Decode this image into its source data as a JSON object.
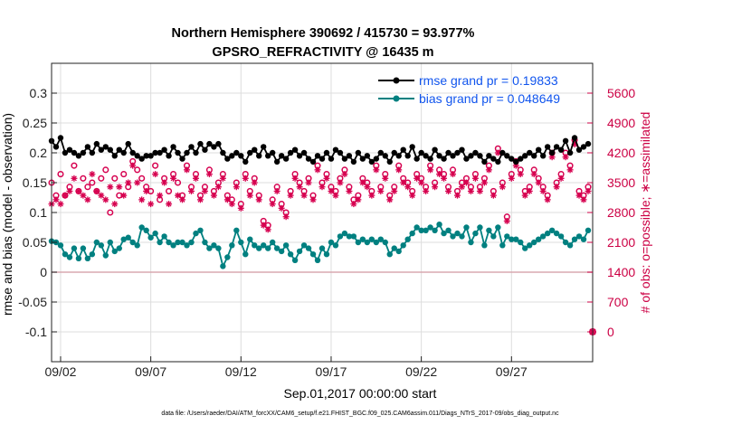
{
  "chart_data": {
    "type": "line",
    "title_line1": "Northern Hemisphere 390692 / 415730 = 93.977%",
    "title_line2": "GPSRO_REFRACTIVITY @ 16435 m",
    "xlabel": "Sep.01,2017 00:00:00 start",
    "ylabel": "rmse and bias (model - observation)",
    "y2label": "# of obs: o=possible; ∗=assimilated",
    "footer": "data file: /Users/raeder/DAI/ATM_forcXX/CAM6_setup/f.e21.FHIST_BGC.f09_025.CAM6assim.011/Diags_NTrS_2017-09/obs_diag_output.nc",
    "xlim": [
      1.5,
      31.5
    ],
    "ylim": [
      -0.15,
      0.35
    ],
    "y2lim": [
      -700,
      6300
    ],
    "x_ticks": [
      2,
      7,
      12,
      17,
      22,
      27
    ],
    "x_tick_labels": [
      "09/02",
      "09/07",
      "09/12",
      "09/17",
      "09/22",
      "09/27"
    ],
    "y_ticks": [
      -0.1,
      -0.05,
      0,
      0.05,
      0.1,
      0.15,
      0.2,
      0.25,
      0.3
    ],
    "y_tick_labels": [
      "-0.1",
      "-0.05",
      "0",
      "0.05",
      "0.1",
      "0.15",
      "0.2",
      "0.25",
      "0.3"
    ],
    "y2_ticks": [
      0,
      700,
      1400,
      2100,
      2800,
      3500,
      4200,
      4900,
      5600
    ],
    "y2_tick_labels": [
      "0",
      "700",
      "1400",
      "2100",
      "2800",
      "3500",
      "4200",
      "4900",
      "5600"
    ],
    "extra_point": {
      "x": 31.5,
      "y2": 0
    },
    "colors": {
      "rmse": "#000000",
      "bias": "#008080",
      "obs": "#d6004f",
      "zero_line": "#d8a8b0",
      "grid": "#dddddd"
    },
    "legend": [
      {
        "name": "rmse grand pr = 0.19833",
        "series": "rmse"
      },
      {
        "name": "bias grand pr = 0.048649",
        "series": "bias"
      }
    ],
    "x": [
      1.5,
      1.75,
      2.0,
      2.25,
      2.5,
      2.75,
      3.0,
      3.25,
      3.5,
      3.75,
      4.0,
      4.25,
      4.5,
      4.75,
      5.0,
      5.25,
      5.5,
      5.75,
      6.0,
      6.25,
      6.5,
      6.75,
      7.0,
      7.25,
      7.5,
      7.75,
      8.0,
      8.25,
      8.5,
      8.75,
      9.0,
      9.25,
      9.5,
      9.75,
      10.0,
      10.25,
      10.5,
      10.75,
      11.0,
      11.25,
      11.5,
      11.75,
      12.0,
      12.25,
      12.5,
      12.75,
      13.0,
      13.25,
      13.5,
      13.75,
      14.0,
      14.25,
      14.5,
      14.75,
      15.0,
      15.25,
      15.5,
      15.75,
      16.0,
      16.25,
      16.5,
      16.75,
      17.0,
      17.25,
      17.5,
      17.75,
      18.0,
      18.25,
      18.5,
      18.75,
      19.0,
      19.25,
      19.5,
      19.75,
      20.0,
      20.25,
      20.5,
      20.75,
      21.0,
      21.25,
      21.5,
      21.75,
      22.0,
      22.25,
      22.5,
      22.75,
      23.0,
      23.25,
      23.5,
      23.75,
      24.0,
      24.25,
      24.5,
      24.75,
      25.0,
      25.25,
      25.5,
      25.75,
      26.0,
      26.25,
      26.5,
      26.75,
      27.0,
      27.25,
      27.5,
      27.75,
      28.0,
      28.25,
      28.5,
      28.75,
      29.0,
      29.25,
      29.5,
      29.75,
      30.0,
      30.25,
      30.5,
      30.75,
      31.0,
      31.25
    ],
    "series": [
      {
        "name": "rmse",
        "values": [
          0.22,
          0.21,
          0.225,
          0.2,
          0.205,
          0.2,
          0.195,
          0.2,
          0.21,
          0.2,
          0.215,
          0.205,
          0.21,
          0.205,
          0.195,
          0.205,
          0.2,
          0.215,
          0.2,
          0.195,
          0.19,
          0.195,
          0.195,
          0.2,
          0.2,
          0.205,
          0.195,
          0.21,
          0.2,
          0.19,
          0.2,
          0.21,
          0.2,
          0.215,
          0.205,
          0.215,
          0.21,
          0.215,
          0.2,
          0.19,
          0.195,
          0.2,
          0.195,
          0.185,
          0.2,
          0.205,
          0.195,
          0.21,
          0.195,
          0.2,
          0.185,
          0.195,
          0.19,
          0.2,
          0.205,
          0.195,
          0.2,
          0.19,
          0.185,
          0.195,
          0.19,
          0.2,
          0.19,
          0.205,
          0.2,
          0.19,
          0.195,
          0.185,
          0.2,
          0.19,
          0.195,
          0.185,
          0.19,
          0.2,
          0.195,
          0.185,
          0.2,
          0.195,
          0.205,
          0.195,
          0.21,
          0.19,
          0.2,
          0.195,
          0.19,
          0.205,
          0.195,
          0.19,
          0.2,
          0.195,
          0.2,
          0.205,
          0.19,
          0.195,
          0.2,
          0.195,
          0.185,
          0.195,
          0.19,
          0.185,
          0.2,
          0.195,
          0.19,
          0.185,
          0.19,
          0.195,
          0.2,
          0.195,
          0.205,
          0.195,
          0.21,
          0.2,
          0.21,
          0.205,
          0.22,
          0.2,
          0.225,
          0.205,
          0.21,
          0.215
        ]
      },
      {
        "name": "bias",
        "values": [
          0.052,
          0.05,
          0.045,
          0.03,
          0.025,
          0.04,
          0.023,
          0.04,
          0.023,
          0.03,
          0.05,
          0.045,
          0.028,
          0.05,
          0.035,
          0.04,
          0.055,
          0.058,
          0.05,
          0.045,
          0.075,
          0.07,
          0.058,
          0.065,
          0.05,
          0.06,
          0.05,
          0.045,
          0.05,
          0.05,
          0.045,
          0.05,
          0.065,
          0.07,
          0.05,
          0.04,
          0.045,
          0.04,
          0.01,
          0.025,
          0.045,
          0.07,
          0.05,
          0.03,
          0.055,
          0.045,
          0.04,
          0.045,
          0.04,
          0.05,
          0.04,
          0.035,
          0.045,
          0.03,
          0.02,
          0.035,
          0.045,
          0.04,
          0.03,
          0.02,
          0.04,
          0.03,
          0.05,
          0.045,
          0.06,
          0.065,
          0.06,
          0.06,
          0.05,
          0.055,
          0.05,
          0.055,
          0.05,
          0.055,
          0.05,
          0.03,
          0.04,
          0.035,
          0.045,
          0.055,
          0.065,
          0.075,
          0.07,
          0.07,
          0.075,
          0.07,
          0.08,
          0.065,
          0.07,
          0.06,
          0.065,
          0.06,
          0.075,
          0.05,
          0.065,
          0.075,
          0.045,
          0.07,
          0.06,
          0.075,
          0.045,
          0.06,
          0.055,
          0.055,
          0.05,
          0.04,
          0.045,
          0.05,
          0.055,
          0.06,
          0.065,
          0.07,
          0.065,
          0.06,
          0.05,
          0.045,
          0.055,
          0.06,
          0.055,
          0.07
        ]
      },
      {
        "name": "obs_possible",
        "values": [
          3500,
          3200,
          3700,
          3200,
          3400,
          3900,
          3300,
          3600,
          3400,
          3500,
          3300,
          3600,
          3800,
          2800,
          3600,
          3200,
          3700,
          3400,
          4000,
          3800,
          3600,
          3400,
          3300,
          3900,
          3100,
          3600,
          3300,
          3700,
          3500,
          3200,
          3900,
          3400,
          3700,
          3200,
          3400,
          3800,
          3300,
          3500,
          3700,
          3200,
          3100,
          3500,
          3000,
          3700,
          3300,
          3600,
          3200,
          2600,
          2500,
          3100,
          3400,
          3000,
          2800,
          3300,
          3700,
          3500,
          3300,
          3600,
          3200,
          3900,
          3500,
          3700,
          3400,
          3300,
          3600,
          3800,
          3400,
          3100,
          3200,
          3600,
          3500,
          3300,
          3900,
          3400,
          3700,
          3200,
          3400,
          3900,
          3600,
          3500,
          3300,
          3700,
          3600,
          3400,
          3900,
          3500,
          3800,
          3700,
          3400,
          3800,
          3300,
          3500,
          3600,
          3400,
          3700,
          3400,
          3600,
          3900,
          3300,
          4300,
          3500,
          2700,
          3700,
          4000,
          3800,
          3300,
          3400,
          3800,
          3600,
          3400,
          3200,
          4200,
          3500,
          3700,
          4200,
          3900,
          4500,
          3300,
          3200,
          3400
        ]
      },
      {
        "name": "obs_assimilated",
        "values": [
          3000,
          3100,
          3000,
          3200,
          3300,
          3600,
          3300,
          3200,
          3100,
          3700,
          3300,
          3200,
          3100,
          3400,
          3000,
          3400,
          3200,
          3500,
          3900,
          3500,
          3100,
          3300,
          3000,
          3700,
          3200,
          3500,
          3000,
          3600,
          3200,
          3100,
          3800,
          3300,
          3600,
          3100,
          3300,
          3700,
          3200,
          3400,
          3600,
          3100,
          3000,
          3400,
          2900,
          3600,
          3200,
          3500,
          3100,
          2500,
          2400,
          3000,
          3300,
          2900,
          2700,
          3200,
          3600,
          3400,
          3200,
          3500,
          3100,
          3800,
          3400,
          3600,
          3300,
          3200,
          3500,
          3700,
          3300,
          3000,
          3100,
          3500,
          3400,
          3200,
          3800,
          3300,
          3600,
          3100,
          3300,
          3800,
          3500,
          3400,
          3200,
          3600,
          3500,
          3300,
          3800,
          3400,
          3700,
          3600,
          3300,
          3700,
          3200,
          3400,
          3500,
          3300,
          3600,
          3300,
          3500,
          3800,
          3200,
          4200,
          3400,
          2600,
          3600,
          3900,
          3700,
          3200,
          3300,
          3700,
          3500,
          3300,
          3100,
          4100,
          3400,
          3600,
          4100,
          3800,
          4400,
          3200,
          3100,
          3300
        ]
      }
    ]
  }
}
